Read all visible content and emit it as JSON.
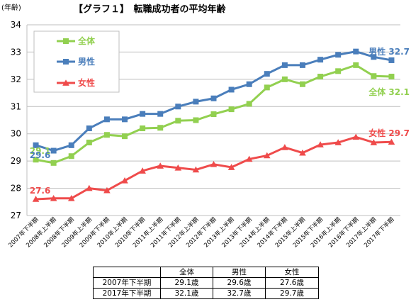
{
  "chart_data": {
    "type": "line",
    "title": "【グラフ１】　転職成功者の平均年齢",
    "ylabel": "(年齢)",
    "ylim": [
      27,
      34
    ],
    "yticks": [
      27,
      28,
      29,
      30,
      31,
      32,
      33,
      34
    ],
    "grid": true,
    "legend_position": "top-left",
    "categories": [
      "2007年下半期",
      "2008年上半期",
      "2008年下半期",
      "2009年上半期",
      "2009年下半期",
      "2010年上半期",
      "2010年下半期",
      "2011年上半期",
      "2011年下半期",
      "2012年上半期",
      "2012年下半期",
      "2013年上半期",
      "2013年下半期",
      "2014年上半期",
      "2014年下半期",
      "2015年上半期",
      "2015年下半期",
      "2016年上半期",
      "2016年下半期",
      "2017年上半期",
      "2017年下半期"
    ],
    "series": [
      {
        "name": "全体",
        "color": "#92d050",
        "marker": "square",
        "values": [
          29.05,
          28.93,
          29.18,
          29.68,
          29.96,
          29.91,
          30.2,
          30.22,
          30.48,
          30.5,
          30.72,
          30.9,
          31.1,
          31.7,
          32.0,
          31.82,
          32.1,
          32.3,
          32.52,
          32.12,
          32.1
        ],
        "first_label": "29.1",
        "last_label": "全体  32.1"
      },
      {
        "name": "男性",
        "color": "#4a7ebb",
        "marker": "square",
        "values": [
          29.58,
          29.38,
          29.58,
          30.2,
          30.53,
          30.53,
          30.73,
          30.73,
          31.0,
          31.18,
          31.3,
          31.62,
          31.82,
          32.2,
          32.52,
          32.52,
          32.72,
          32.9,
          33.02,
          32.82,
          32.7
        ],
        "first_label": "29.6",
        "last_label": "男性  32.7"
      },
      {
        "name": "女性",
        "color": "#ef4b4b",
        "marker": "triangle",
        "values": [
          27.6,
          27.63,
          27.63,
          28.0,
          27.92,
          28.28,
          28.64,
          28.82,
          28.75,
          28.68,
          28.88,
          28.77,
          29.07,
          29.2,
          29.5,
          29.3,
          29.6,
          29.68,
          29.88,
          29.68,
          29.7
        ],
        "first_label": "27.6",
        "last_label": "女性  29.7"
      }
    ]
  },
  "table": {
    "headers": [
      "",
      "全体",
      "男性",
      "女性"
    ],
    "rows": [
      [
        "2007年下半期",
        "29.1歳",
        "29.6歳",
        "27.6歳"
      ],
      [
        "2017年下半期",
        "32.1歳",
        "32.7歳",
        "29.7歳"
      ]
    ]
  }
}
